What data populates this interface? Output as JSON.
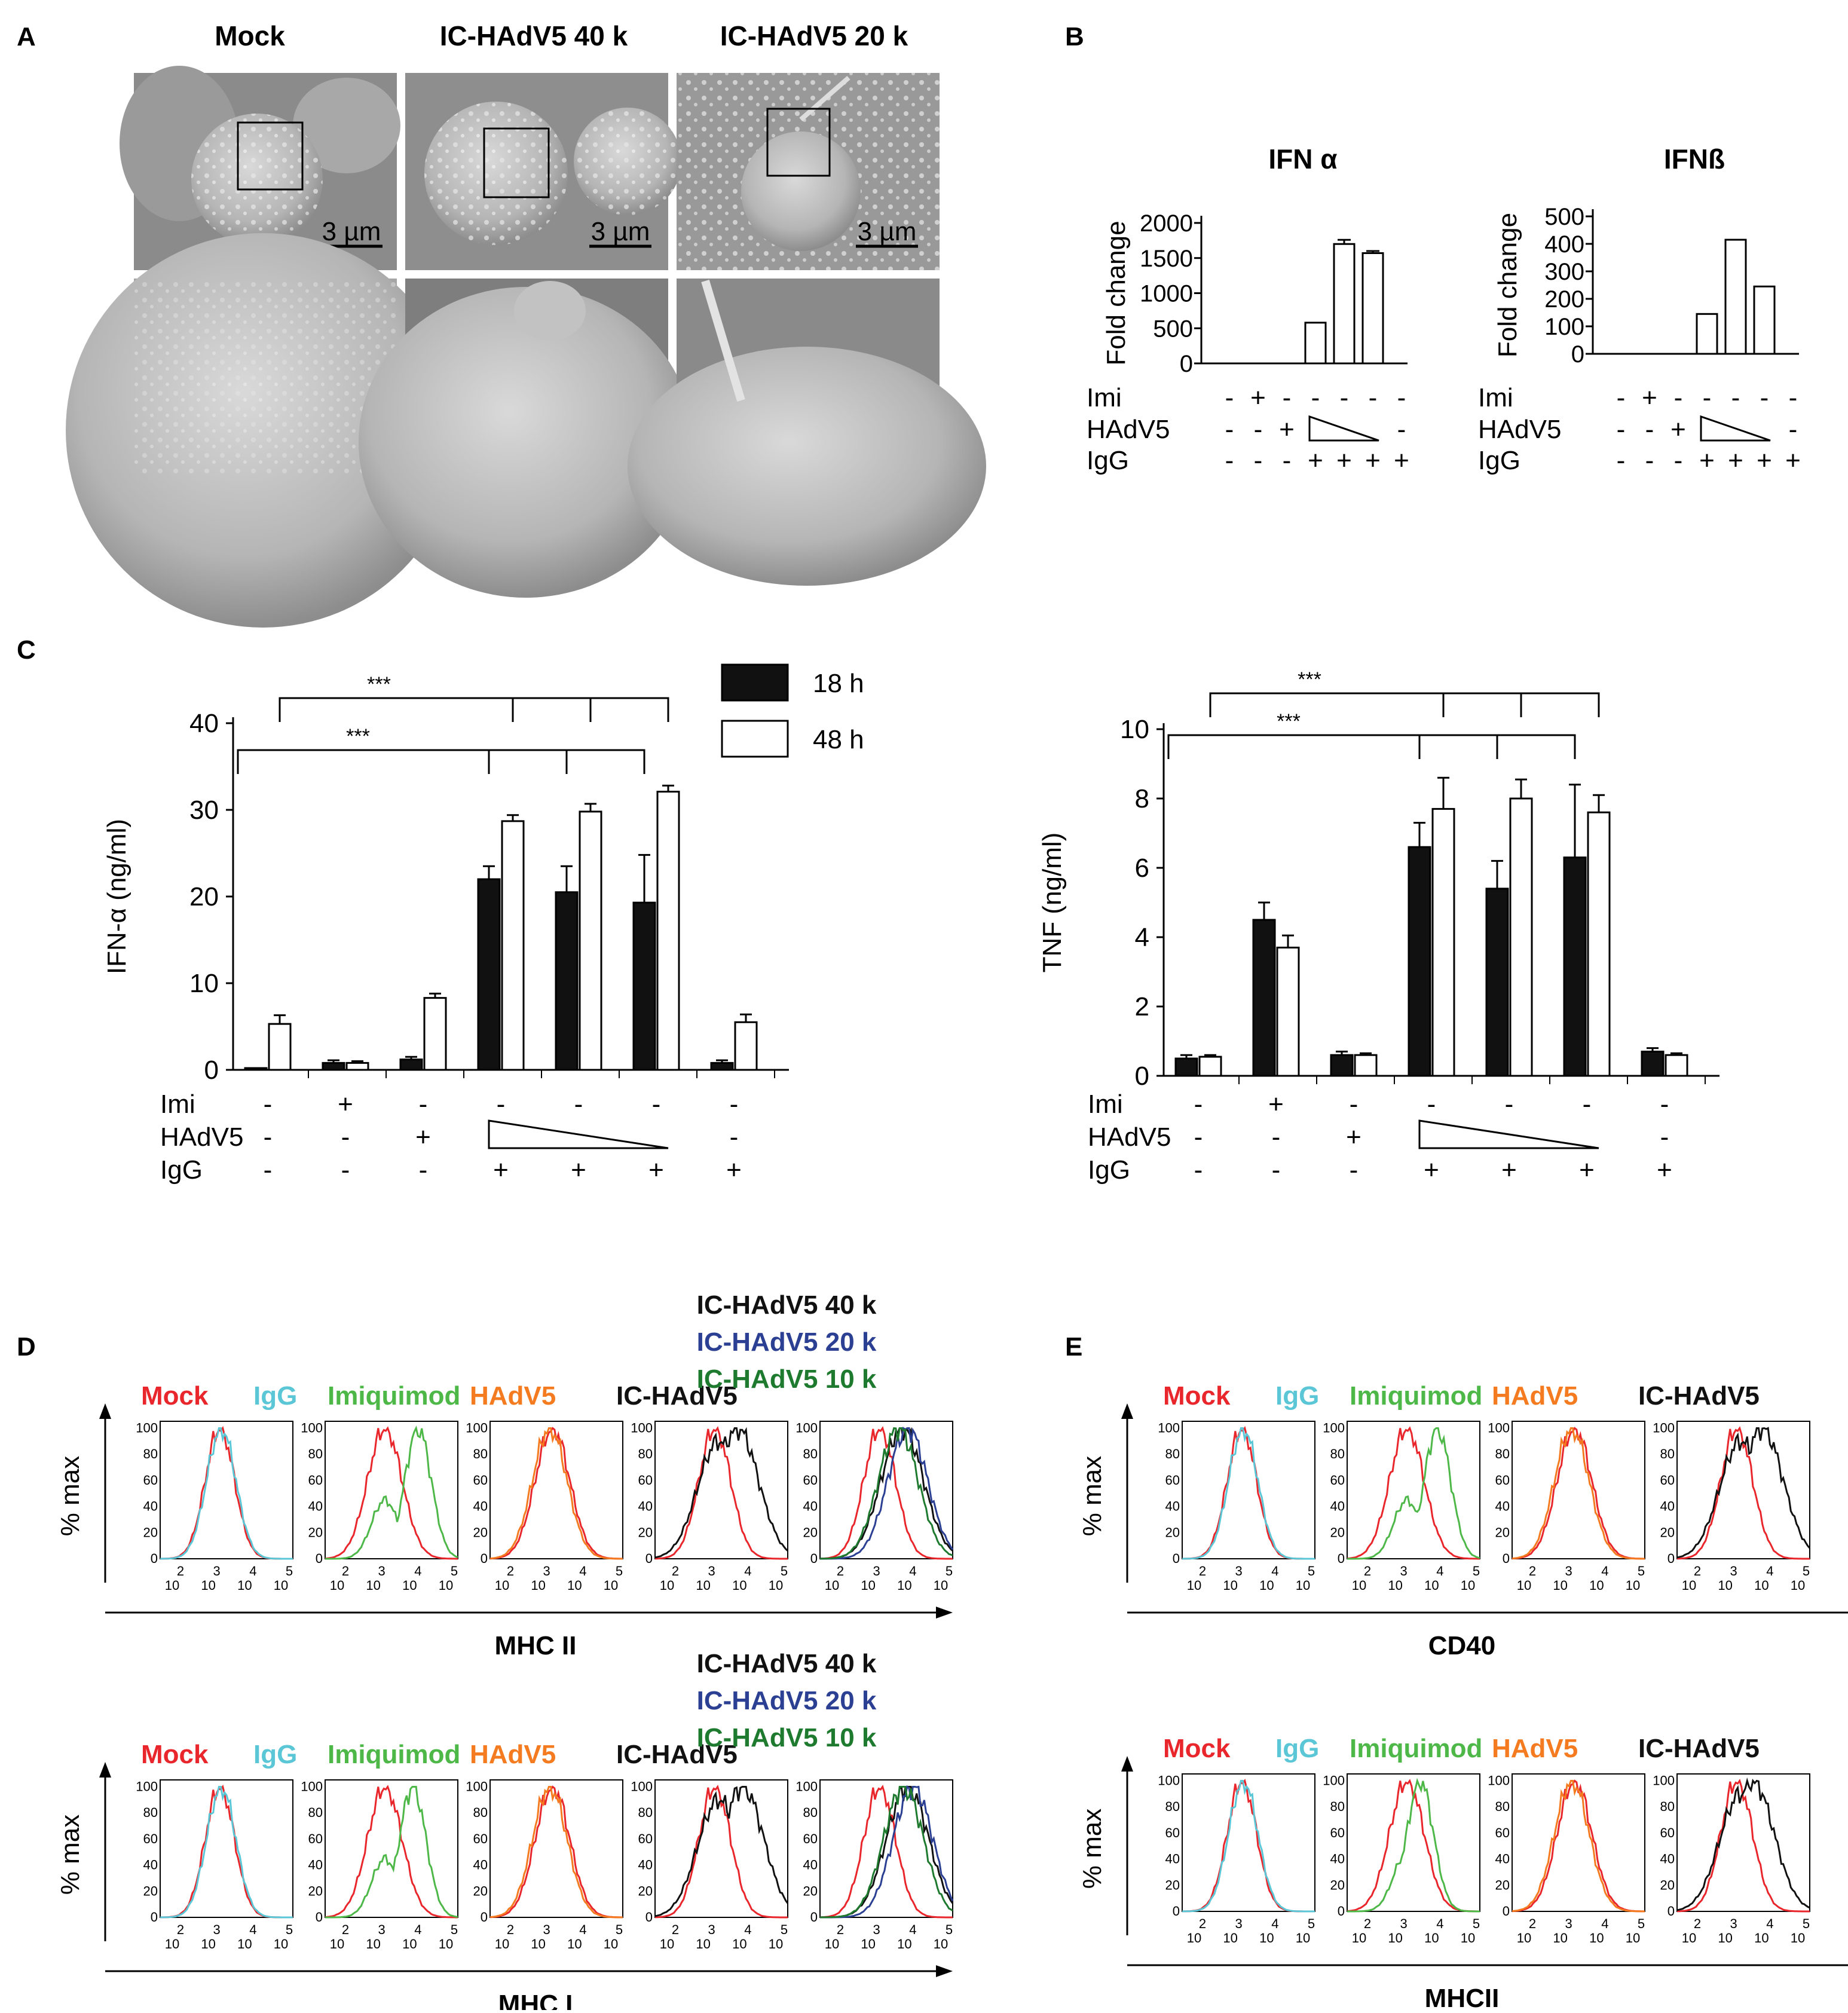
{
  "panel_labels": {
    "A": "A",
    "B": "B",
    "C": "C",
    "D": "D",
    "E": "E"
  },
  "panelA": {
    "headers": [
      "Mock",
      "IC-HAdV5 40 k",
      "IC-HAdV5 20 k"
    ],
    "scale_bar": "3 µm"
  },
  "row_labels": {
    "imi": "Imi",
    "hadv": "HAdV5",
    "igg": "IgG"
  },
  "colors": {
    "mock": "#e8262b",
    "igg": "#5bc6d6",
    "imiquimod": "#4db848",
    "hadv5": "#f47b20",
    "ic": "#111111",
    "ic20": "#2b3f93",
    "ic10": "#1e7a2e"
  },
  "flow": {
    "labels": {
      "mock": "Mock",
      "igg": "IgG",
      "imiquimod": "Imiquimod",
      "hadv5": "HAdV5",
      "ic": "IC-HAdV5",
      "ic40": "IC-HAdV5 40 k",
      "ic20": "IC-HAdV5 20 k",
      "ic10": "IC-HAdV5 10 k"
    },
    "y_label": "% max",
    "y_ticks": [
      "100",
      "80",
      "60",
      "40",
      "20",
      "0"
    ],
    "x_ticks": [
      {
        "b": "10",
        "e": "2"
      },
      {
        "b": "10",
        "e": "3"
      },
      {
        "b": "10",
        "e": "4"
      },
      {
        "b": "10",
        "e": "5"
      }
    ],
    "markers": {
      "D1": "MHC II",
      "D2": "MHC I",
      "E1": "CD40",
      "E2": "MHCII"
    }
  },
  "chart_data": [
    {
      "id": "B-IFNa",
      "type": "bar",
      "title": "IFN α",
      "ylabel": "Fold change",
      "ylim": [
        0,
        2000
      ],
      "yticks": [
        0,
        500,
        1000,
        1500,
        2000
      ],
      "values": [
        0,
        0,
        0,
        580,
        1700,
        1570,
        0
      ],
      "errors": [
        0,
        0,
        0,
        0,
        60,
        30,
        0
      ],
      "conditions": {
        "imi": [
          "-",
          "+",
          "-",
          "-",
          "-",
          "-",
          "-"
        ],
        "hadv": [
          "-",
          "-",
          "+",
          "ramp",
          "ramp",
          "ramp",
          "-"
        ],
        "igg": [
          "-",
          "-",
          "-",
          "+",
          "+",
          "+",
          "+"
        ]
      }
    },
    {
      "id": "B-IFNb",
      "type": "bar",
      "title": "IFNß",
      "ylabel": "Fold change",
      "ylim": [
        0,
        500
      ],
      "yticks": [
        0,
        100,
        200,
        300,
        400,
        500
      ],
      "values": [
        0,
        0,
        0,
        145,
        415,
        245,
        0
      ],
      "errors": [
        0,
        0,
        0,
        0,
        0,
        0,
        0
      ],
      "conditions": {
        "imi": [
          "-",
          "+",
          "-",
          "-",
          "-",
          "-",
          "-"
        ],
        "hadv": [
          "-",
          "-",
          "+",
          "ramp",
          "ramp",
          "ramp",
          "-"
        ],
        "igg": [
          "-",
          "-",
          "-",
          "+",
          "+",
          "+",
          "+"
        ]
      }
    },
    {
      "id": "C-IFNa",
      "type": "bar",
      "ylabel": "IFN-α (ng/ml)",
      "ylim": [
        0,
        40
      ],
      "yticks": [
        0,
        10,
        20,
        30,
        40
      ],
      "legend": [
        "18 h",
        "48 h"
      ],
      "series": [
        {
          "name": "18 h",
          "values": [
            0.1,
            0.8,
            1.2,
            22,
            20.5,
            19.3,
            0.8
          ],
          "errors": [
            0,
            0.3,
            0.3,
            1.5,
            3,
            5.5,
            0.3
          ]
        },
        {
          "name": "48 h",
          "values": [
            5.3,
            0.8,
            8.3,
            28.7,
            29.8,
            32.1,
            5.5
          ],
          "errors": [
            1,
            0.2,
            0.5,
            0.7,
            0.9,
            0.7,
            0.9
          ]
        }
      ],
      "significance": [
        "***",
        "***"
      ],
      "conditions": {
        "imi": [
          "-",
          "+",
          "-",
          "-",
          "-",
          "-",
          "-"
        ],
        "hadv": [
          "-",
          "-",
          "+",
          "ramp",
          "ramp",
          "ramp",
          "-"
        ],
        "igg": [
          "-",
          "-",
          "-",
          "+",
          "+",
          "+",
          "+"
        ]
      }
    },
    {
      "id": "C-TNF",
      "type": "bar",
      "ylabel": "TNF (ng/ml)",
      "ylim": [
        0,
        10
      ],
      "yticks": [
        0,
        2,
        4,
        6,
        8,
        10
      ],
      "series": [
        {
          "name": "18 h",
          "values": [
            0.5,
            4.5,
            0.6,
            6.6,
            5.4,
            6.3,
            0.7
          ],
          "errors": [
            0.1,
            0.5,
            0.1,
            0.7,
            0.8,
            2.1,
            0.1
          ]
        },
        {
          "name": "48 h",
          "values": [
            0.55,
            3.7,
            0.6,
            7.7,
            8.0,
            7.6,
            0.6
          ],
          "errors": [
            0.05,
            0.35,
            0.05,
            0.9,
            0.55,
            0.5,
            0.05
          ]
        }
      ],
      "significance": [
        "***",
        "***"
      ],
      "conditions": {
        "imi": [
          "-",
          "+",
          "-",
          "-",
          "-",
          "-",
          "-"
        ],
        "hadv": [
          "-",
          "-",
          "+",
          "ramp",
          "ramp",
          "ramp",
          "-"
        ],
        "igg": [
          "-",
          "-",
          "-",
          "+",
          "+",
          "+",
          "+"
        ]
      }
    }
  ]
}
